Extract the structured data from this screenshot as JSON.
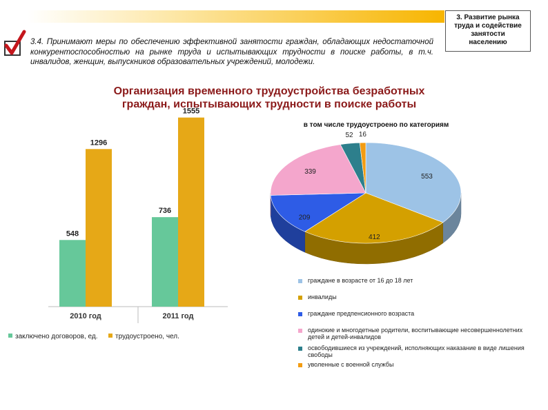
{
  "header": {
    "section_box_lines": [
      "3. Развитие рынка",
      "труда и содействие",
      "занятости",
      "населению"
    ]
  },
  "intro_text": "3.4. Принимают меры по обеспечению эффективной занятости граждан, обладающих недостаточной конкурентоспособностью на рынке труда и испытывающих трудности в поиске работы, в т.ч. инвалидов, женщин, выпускников образовательных учреждений, молодежи.",
  "title_lines": [
    "Организация временного трудоустройства безработных",
    "граждан, испытывающих трудности в поиске работы"
  ],
  "icons": {
    "check": "check-mark-icon"
  },
  "chart_data": [
    {
      "type": "bar",
      "categories": [
        "2010 год",
        "2011 год"
      ],
      "series": [
        {
          "name": "заключено договоров, ед.",
          "values": [
            548,
            736
          ],
          "color": "#66c89a"
        },
        {
          "name": "трудоустроено, чел.",
          "values": [
            1296,
            1555
          ],
          "color": "#e6a817"
        }
      ],
      "ylim": [
        0,
        1700
      ],
      "grid": false,
      "legend": "bottom"
    },
    {
      "type": "pie",
      "title": "в том числе трудоустроено по категориям",
      "slices": [
        {
          "label": "граждане в возрасте от 16 до 18 лет",
          "value": 553,
          "color": "#9dc3e6"
        },
        {
          "label": "инвалиды",
          "value": 412,
          "color": "#d4a000"
        },
        {
          "label": "граждане предпенсионного возраста",
          "value": 209,
          "color": "#2e5ce6"
        },
        {
          "label": "одинокие и многодетные родители, воспитывающие несовершеннолетних детей и детей-инвалидов",
          "value": 339,
          "color": "#f4a6cc"
        },
        {
          "label": "освободившиеся из учреждений, исполняющих наказание в виде лишения свободы",
          "value": 52,
          "color": "#2d7f8c"
        },
        {
          "label": "уволенные с военной службы",
          "value": 16,
          "color": "#f39c12"
        }
      ],
      "legend": "bottom"
    }
  ]
}
